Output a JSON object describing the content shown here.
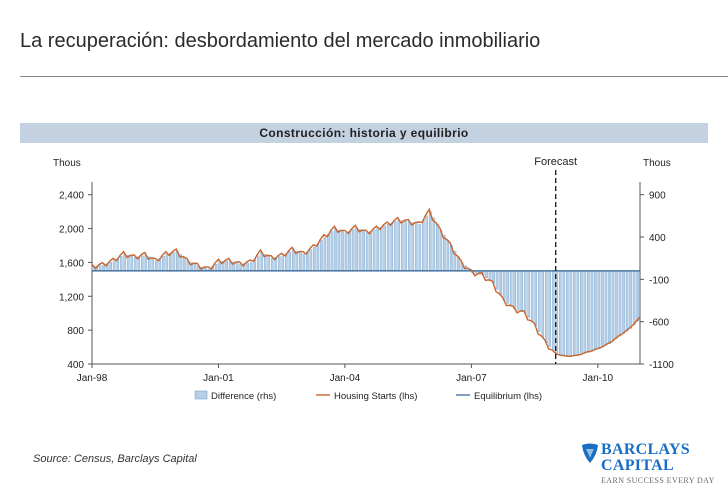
{
  "slide": {
    "title": "La recuperación: desbordamiento del mercado inmobiliario",
    "source": "Source: Census, Barclays Capital"
  },
  "logo": {
    "line1": "BARCLAYS",
    "line2": "CAPITAL",
    "tagline": "EARN SUCCESS EVERY DAY"
  },
  "colors": {
    "housing": "#c8642c",
    "difference_fill": "#b5cfe6",
    "difference_stroke": "#7ea7cf",
    "equilibrium": "#2d5f93",
    "banner": "#c3d1e0",
    "brand": "#1a6fc4"
  },
  "chart_data": {
    "type": "bar+line",
    "title": "Construcción: historia y equilibrio",
    "left_axis": {
      "unit_label": "Thous",
      "ticks": [
        "2,400",
        "2,000",
        "1,600",
        "1,200",
        "800",
        "400"
      ],
      "range": [
        400,
        2550
      ]
    },
    "right_axis": {
      "unit_label": "Thous",
      "ticks": [
        "900",
        "400",
        "-100",
        "-600",
        "-1100"
      ],
      "range": [
        -1100,
        1050
      ]
    },
    "x_axis": {
      "ticks": [
        "Jan-98",
        "Jan-01",
        "Jan-04",
        "Jan-07",
        "Jan-10"
      ],
      "range": [
        1998.0,
        2011.0
      ]
    },
    "forecast": {
      "label": "Forecast",
      "x": 2009.0
    },
    "legend": [
      "Difference (rhs)",
      "Housing Starts (lhs)",
      "Equilibrium (lhs)"
    ],
    "equilibrium_value": 1500,
    "series": [
      {
        "name": "Housing Starts (lhs)",
        "type": "line",
        "x": [
          1998.0,
          1998.25,
          1998.5,
          1998.75,
          1999.0,
          1999.25,
          1999.5,
          1999.75,
          2000.0,
          2000.25,
          2000.5,
          2000.75,
          2001.0,
          2001.25,
          2001.5,
          2001.75,
          2002.0,
          2002.25,
          2002.5,
          2002.75,
          2003.0,
          2003.25,
          2003.5,
          2003.75,
          2004.0,
          2004.25,
          2004.5,
          2004.75,
          2005.0,
          2005.25,
          2005.5,
          2005.75,
          2006.0,
          2006.25,
          2006.5,
          2006.75,
          2007.0,
          2007.25,
          2007.5,
          2007.75,
          2008.0,
          2008.25,
          2008.5,
          2008.75,
          2009.0,
          2009.25,
          2009.5,
          2009.75,
          2010.0,
          2010.25,
          2010.5,
          2010.75,
          2011.0
        ],
        "values": [
          1550,
          1570,
          1620,
          1700,
          1660,
          1690,
          1620,
          1700,
          1730,
          1620,
          1560,
          1520,
          1610,
          1620,
          1580,
          1600,
          1720,
          1650,
          1680,
          1750,
          1700,
          1780,
          1900,
          2000,
          1950,
          2010,
          1950,
          2000,
          2050,
          2100,
          2080,
          2050,
          2200,
          1980,
          1800,
          1600,
          1480,
          1450,
          1350,
          1150,
          1050,
          1000,
          850,
          650,
          520,
          490,
          500,
          540,
          580,
          640,
          730,
          820,
          950
        ]
      },
      {
        "name": "Difference (rhs)",
        "type": "bar",
        "note": "Housing Starts minus Equilibrium (1500), plotted on right axis",
        "derived_from": "Housing Starts (lhs)"
      },
      {
        "name": "Equilibrium (lhs)",
        "type": "line",
        "constant": 1500
      }
    ]
  }
}
